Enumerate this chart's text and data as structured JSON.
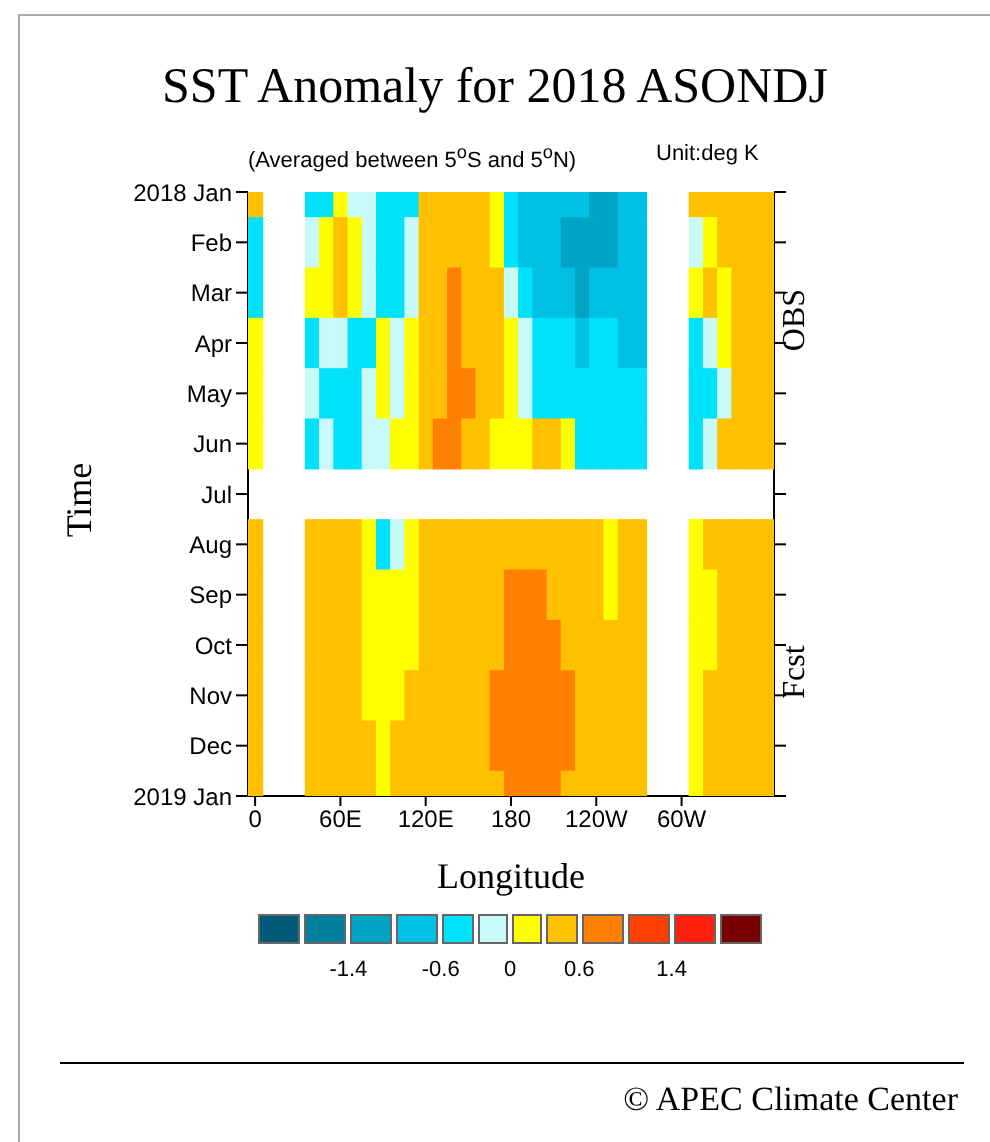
{
  "chart_data": {
    "type": "heatmap",
    "title": "SST Anomaly for 2018 ASONDJ",
    "subtitle": "(Averaged between 5$^{o}$S and 5$^{o}$N)",
    "xlabel": "Longitude",
    "ylabel": "Time",
    "annotations": [
      "Unit:deg K",
      "OBS",
      "Fcst",
      "© APEC Climate Center"
    ],
    "categories": [
      "0",
      null,
      null,
      null,
      null,
      null,
      "60E",
      null,
      null,
      null,
      null,
      null,
      "120E",
      null,
      null,
      null,
      null,
      null,
      "180",
      null,
      null,
      null,
      null,
      null,
      "120W",
      null,
      null,
      null,
      null,
      null,
      "60W",
      null,
      null,
      null,
      null,
      null,
      null
    ],
    "y_categories": [
      "2018 Jan",
      "Feb",
      "Mar",
      "Apr",
      "May",
      "Jun",
      "Jul",
      "Aug",
      "Sep",
      "Oct",
      "Nov",
      "Dec",
      "2019 Jan"
    ],
    "cells": [
      [
        0.45,
        null,
        null,
        null,
        -0.45,
        -0.45,
        0.15,
        -0.15,
        -0.15,
        -0.45,
        -0.45,
        -0.45,
        0.45,
        0.45,
        0.45,
        0.45,
        0.45,
        0.15,
        -0.45,
        -0.8,
        -0.8,
        -0.8,
        -0.8,
        -0.8,
        -1.2,
        -1.2,
        -0.8,
        -0.8,
        null,
        null,
        null,
        0.45,
        0.45,
        0.45,
        0.45,
        0.45,
        0.45
      ],
      [
        -0.45,
        null,
        null,
        null,
        -0.15,
        0.15,
        0.45,
        0.15,
        -0.15,
        -0.45,
        -0.45,
        -0.15,
        0.45,
        0.45,
        0.45,
        0.45,
        0.45,
        0.15,
        -0.45,
        -0.8,
        -0.8,
        -0.8,
        -1.2,
        -1.2,
        -1.2,
        -1.2,
        -0.8,
        -0.8,
        null,
        null,
        null,
        -0.15,
        0.15,
        0.45,
        0.45,
        0.45,
        0.45
      ],
      [
        -0.45,
        null,
        null,
        null,
        0.15,
        0.15,
        0.45,
        0.15,
        -0.15,
        -0.45,
        -0.45,
        -0.15,
        0.45,
        0.45,
        0.8,
        0.45,
        0.45,
        0.45,
        -0.15,
        -0.45,
        -0.8,
        -0.8,
        -0.8,
        -1.2,
        -0.8,
        -0.8,
        -0.8,
        -0.8,
        null,
        null,
        null,
        0.15,
        0.45,
        0.15,
        0.45,
        0.45,
        0.45
      ],
      [
        0.15,
        null,
        null,
        null,
        -0.45,
        -0.15,
        -0.15,
        -0.45,
        -0.45,
        0.15,
        -0.15,
        0.15,
        0.45,
        0.45,
        0.8,
        0.45,
        0.45,
        0.45,
        0.15,
        -0.15,
        -0.45,
        -0.45,
        -0.45,
        -0.8,
        -0.45,
        -0.45,
        -0.8,
        -0.8,
        null,
        null,
        null,
        -0.45,
        -0.15,
        0.15,
        0.45,
        0.45,
        0.45
      ],
      [
        0.15,
        null,
        null,
        null,
        -0.15,
        -0.45,
        -0.45,
        -0.45,
        -0.15,
        0.15,
        -0.15,
        0.15,
        0.45,
        0.45,
        0.8,
        0.8,
        0.45,
        0.45,
        0.15,
        -0.15,
        -0.45,
        -0.45,
        -0.45,
        -0.45,
        -0.45,
        -0.45,
        -0.45,
        -0.45,
        null,
        null,
        null,
        -0.45,
        -0.45,
        -0.15,
        0.45,
        0.45,
        0.45
      ],
      [
        0.15,
        null,
        null,
        null,
        -0.45,
        -0.15,
        -0.45,
        -0.45,
        -0.15,
        -0.15,
        0.15,
        0.15,
        0.45,
        0.8,
        0.8,
        0.45,
        0.45,
        0.15,
        0.15,
        0.15,
        0.45,
        0.45,
        0.15,
        -0.45,
        -0.45,
        -0.45,
        -0.45,
        -0.45,
        null,
        null,
        null,
        -0.45,
        -0.15,
        0.45,
        0.45,
        0.45,
        0.45
      ],
      [
        null,
        null,
        null,
        null,
        null,
        null,
        null,
        null,
        null,
        null,
        null,
        null,
        null,
        null,
        null,
        null,
        null,
        null,
        null,
        null,
        null,
        null,
        null,
        null,
        null,
        null,
        null,
        null,
        null,
        null,
        null,
        null,
        null,
        null,
        null,
        null,
        null
      ],
      [
        0.45,
        null,
        null,
        null,
        0.45,
        0.45,
        0.45,
        0.45,
        0.15,
        -0.45,
        -0.15,
        0.15,
        0.45,
        0.45,
        0.45,
        0.45,
        0.45,
        0.45,
        0.45,
        0.45,
        0.45,
        0.45,
        0.45,
        0.45,
        0.45,
        0.15,
        0.45,
        0.45,
        null,
        null,
        null,
        0.15,
        0.45,
        0.45,
        0.45,
        0.45,
        0.45
      ],
      [
        0.45,
        null,
        null,
        null,
        0.45,
        0.45,
        0.45,
        0.45,
        0.15,
        0.15,
        0.15,
        0.15,
        0.45,
        0.45,
        0.45,
        0.45,
        0.45,
        0.45,
        0.8,
        0.8,
        0.8,
        0.45,
        0.45,
        0.45,
        0.45,
        0.15,
        0.45,
        0.45,
        null,
        null,
        null,
        0.15,
        0.15,
        0.45,
        0.45,
        0.45,
        0.45
      ],
      [
        0.45,
        null,
        null,
        null,
        0.45,
        0.45,
        0.45,
        0.45,
        0.15,
        0.15,
        0.15,
        0.15,
        0.45,
        0.45,
        0.45,
        0.45,
        0.45,
        0.45,
        0.8,
        0.8,
        0.8,
        0.8,
        0.45,
        0.45,
        0.45,
        0.45,
        0.45,
        0.45,
        null,
        null,
        null,
        0.15,
        0.15,
        0.45,
        0.45,
        0.45,
        0.45
      ],
      [
        0.45,
        null,
        null,
        null,
        0.45,
        0.45,
        0.45,
        0.45,
        0.15,
        0.15,
        0.15,
        0.45,
        0.45,
        0.45,
        0.45,
        0.45,
        0.45,
        0.8,
        0.8,
        0.8,
        0.8,
        0.8,
        0.8,
        0.45,
        0.45,
        0.45,
        0.45,
        0.45,
        null,
        null,
        null,
        0.15,
        0.45,
        0.45,
        0.45,
        0.45,
        0.45
      ],
      [
        0.45,
        null,
        null,
        null,
        0.45,
        0.45,
        0.45,
        0.45,
        0.45,
        0.15,
        0.45,
        0.45,
        0.45,
        0.45,
        0.45,
        0.45,
        0.45,
        0.8,
        0.8,
        0.8,
        0.8,
        0.8,
        0.8,
        0.45,
        0.45,
        0.45,
        0.45,
        0.45,
        null,
        null,
        null,
        0.15,
        0.45,
        0.45,
        0.45,
        0.45,
        0.45
      ],
      [
        0.45,
        null,
        null,
        null,
        0.45,
        0.45,
        0.45,
        0.45,
        0.45,
        0.15,
        0.45,
        0.45,
        0.45,
        0.45,
        0.45,
        0.45,
        0.45,
        0.45,
        0.8,
        0.8,
        0.8,
        0.8,
        0.45,
        0.45,
        0.45,
        0.45,
        0.45,
        0.45,
        null,
        null,
        null,
        0.15,
        0.45,
        0.45,
        0.45,
        0.45,
        0.45
      ]
    ],
    "clim": [
      -2.2,
      2.2
    ],
    "cticks": [
      {
        "value": -1.8,
        "label": null
      },
      -1.4,
      {
        "value": -1,
        "label": null
      },
      -0.6,
      {
        "value": -0.3,
        "label": null
      },
      0,
      {
        "value": 0.3,
        "label": null
      },
      0.6,
      {
        "value": 1,
        "label": null
      },
      1.4,
      {
        "value": 1.8,
        "label": null
      }
    ],
    "colors": [
      "#005a78",
      "#00809f",
      "#00a3c4",
      "#00c0e6",
      "#00e2fb",
      "#c8fafa",
      "#ffff00",
      "#ffc000",
      "#ff8000",
      "#ff4000",
      "#ff2010",
      "#780000"
    ]
  }
}
